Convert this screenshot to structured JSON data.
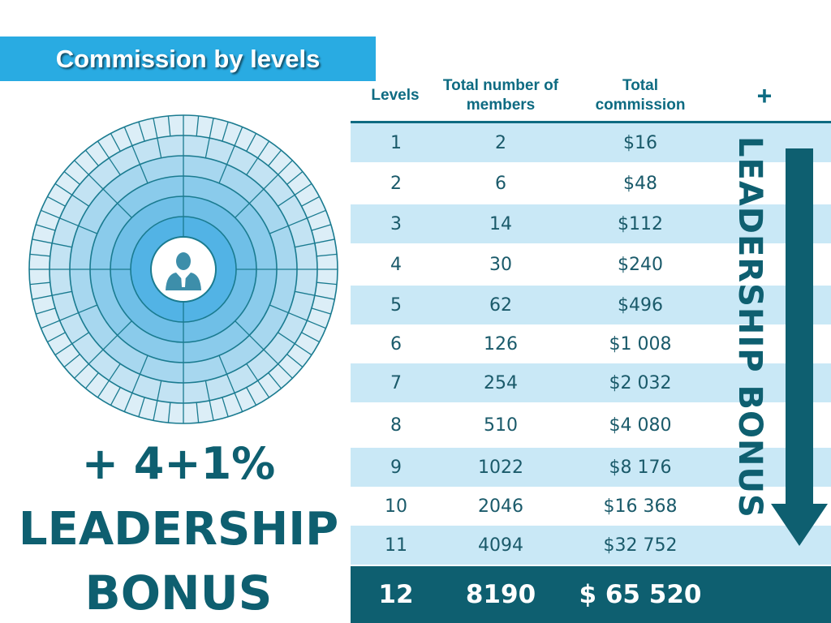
{
  "title": "Commission by levels",
  "left_text": {
    "line1": "+ 4+1%",
    "line2": "LEADERSHIP",
    "line3": "BONUS"
  },
  "table": {
    "headers": {
      "levels": "Levels",
      "members": "Total number of members",
      "commission": "Total commission",
      "plus": "+"
    },
    "rows": [
      {
        "level": "1",
        "members": "2",
        "commission": "$16"
      },
      {
        "level": "2",
        "members": "6",
        "commission": "$48"
      },
      {
        "level": "3",
        "members": "14",
        "commission": "$112"
      },
      {
        "level": "4",
        "members": "30",
        "commission": "$240"
      },
      {
        "level": "5",
        "members": "62",
        "commission": "$496"
      },
      {
        "level": "6",
        "members": "126",
        "commission": "$1 008"
      },
      {
        "level": "7",
        "members": "254",
        "commission": "$2 032"
      },
      {
        "level": "8",
        "members": "510",
        "commission": "$4 080"
      },
      {
        "level": "9",
        "members": "1022",
        "commission": "$8 176"
      },
      {
        "level": "10",
        "members": "2046",
        "commission": "$16 368"
      },
      {
        "level": "11",
        "members": "4094",
        "commission": "$32 752"
      }
    ],
    "total": {
      "level": "12",
      "members": "8190",
      "commission": "$ 65 520"
    }
  },
  "vertical_label": "LEADERSHIP BONUS",
  "icons": {
    "center": "businessman-icon",
    "arrow": "arrow-down-icon"
  },
  "colors": {
    "banner": "#29abe2",
    "dark_teal": "#0e5f70",
    "light_row": "#c9e8f6",
    "header_text": "#0e6b82"
  }
}
